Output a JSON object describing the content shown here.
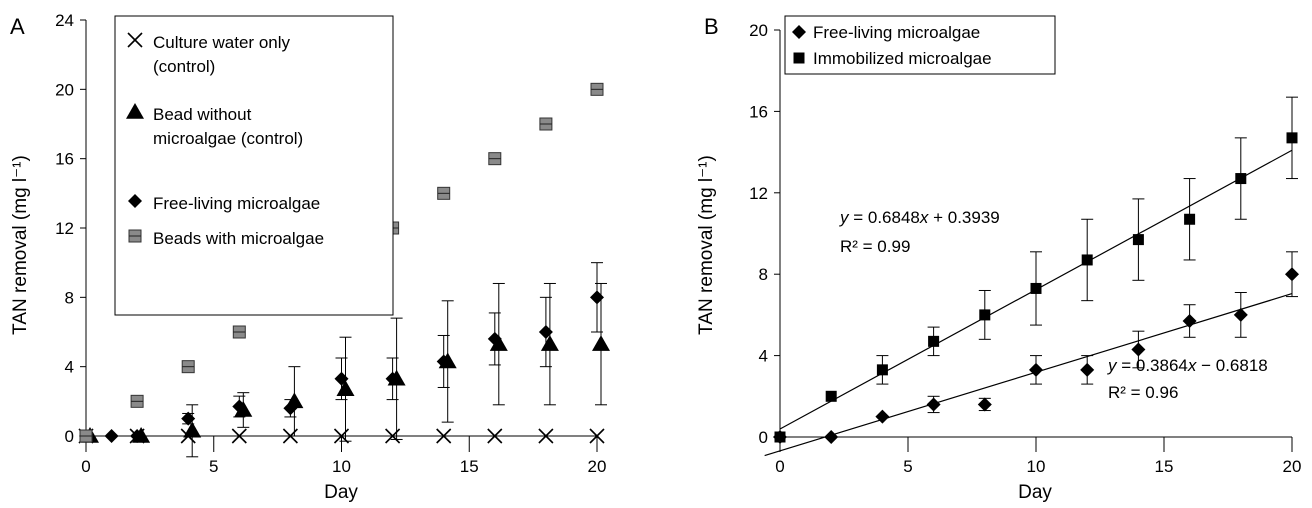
{
  "chart_data": [
    {
      "panel": "A",
      "type": "scatter",
      "xlabel": "Day",
      "ylabel": "TAN removal (mg l⁻¹)",
      "xlim": [
        0,
        20
      ],
      "ylim": [
        0,
        24
      ],
      "xticks": [
        "0",
        "5",
        "10",
        "15",
        "20"
      ],
      "yticks": [
        "0",
        "4",
        "8",
        "12",
        "16",
        "20",
        "24"
      ],
      "legend_position": "top-left",
      "series": [
        {
          "name": "Culture water only (control)",
          "marker": "x",
          "x": [
            0,
            2,
            4,
            6,
            8,
            10,
            12,
            14,
            16,
            18,
            20
          ],
          "y": [
            0,
            0,
            0,
            0,
            0,
            0,
            0,
            0,
            0,
            0,
            0
          ]
        },
        {
          "name": "Bead without microalgae (control)",
          "marker": "triangle",
          "x": [
            0,
            2,
            4,
            6,
            8,
            10,
            12,
            14,
            16,
            18,
            20
          ],
          "y": [
            0,
            0,
            0.3,
            1.5,
            2.0,
            2.7,
            3.3,
            4.3,
            5.3,
            5.3,
            5.3
          ],
          "err": [
            0,
            0,
            1.5,
            1.0,
            2.0,
            3.0,
            3.5,
            3.5,
            3.5,
            3.5,
            3.5
          ]
        },
        {
          "name": "Free-living microalgae",
          "marker": "diamond",
          "x": [
            0,
            1,
            2,
            4,
            6,
            8,
            10,
            12,
            14,
            16,
            18,
            20
          ],
          "y": [
            0,
            0,
            0,
            1.0,
            1.7,
            1.6,
            3.3,
            3.3,
            4.3,
            5.6,
            6.0,
            8.0
          ],
          "err": [
            0,
            0,
            0,
            0.3,
            0.6,
            0.5,
            1.2,
            1.2,
            1.5,
            1.5,
            2.0,
            2.0
          ]
        },
        {
          "name": "Beads with microalgae",
          "marker": "square",
          "x": [
            0,
            2,
            4,
            6,
            8,
            10,
            12,
            14,
            16,
            18,
            20
          ],
          "y": [
            0,
            2,
            4,
            6,
            8,
            10,
            12,
            14,
            16,
            18,
            20
          ]
        }
      ]
    },
    {
      "panel": "B",
      "type": "scatter",
      "xlabel": "Day",
      "ylabel": "TAN removal (mg l⁻¹)",
      "xlim": [
        0,
        20
      ],
      "ylim": [
        0,
        20
      ],
      "xticks": [
        "0",
        "5",
        "10",
        "15",
        "20"
      ],
      "yticks": [
        "0",
        "4",
        "8",
        "12",
        "16",
        "20"
      ],
      "legend_position": "top-left",
      "series": [
        {
          "name": "Free-living microalgae",
          "marker": "diamond",
          "x": [
            0,
            2,
            4,
            6,
            8,
            10,
            12,
            14,
            16,
            18,
            20
          ],
          "y": [
            0,
            0,
            1.0,
            1.6,
            1.6,
            3.3,
            3.3,
            4.3,
            5.7,
            6.0,
            8.0
          ],
          "err": [
            0,
            0,
            0,
            0.4,
            0.3,
            0.7,
            0.7,
            0.9,
            0.8,
            1.1,
            1.1
          ],
          "fit": {
            "slope": 0.3864,
            "intercept": -0.6818,
            "equation": "y = 0.3864x − 0.6818",
            "r2": "R² = 0.96"
          }
        },
        {
          "name": "Immobilized microalgae",
          "marker": "square",
          "x": [
            0,
            2,
            4,
            6,
            8,
            10,
            12,
            14,
            16,
            18,
            20
          ],
          "y": [
            0,
            2.0,
            3.3,
            4.7,
            6.0,
            7.3,
            8.7,
            9.7,
            10.7,
            12.7,
            14.7
          ],
          "err": [
            0,
            0,
            0.7,
            0.7,
            1.2,
            1.8,
            2.0,
            2.0,
            2.0,
            2.0,
            2.0
          ],
          "fit": {
            "slope": 0.6848,
            "intercept": 0.3939,
            "equation": "y = 0.6848x + 0.3939",
            "r2": "R² = 0.99"
          }
        }
      ]
    }
  ]
}
